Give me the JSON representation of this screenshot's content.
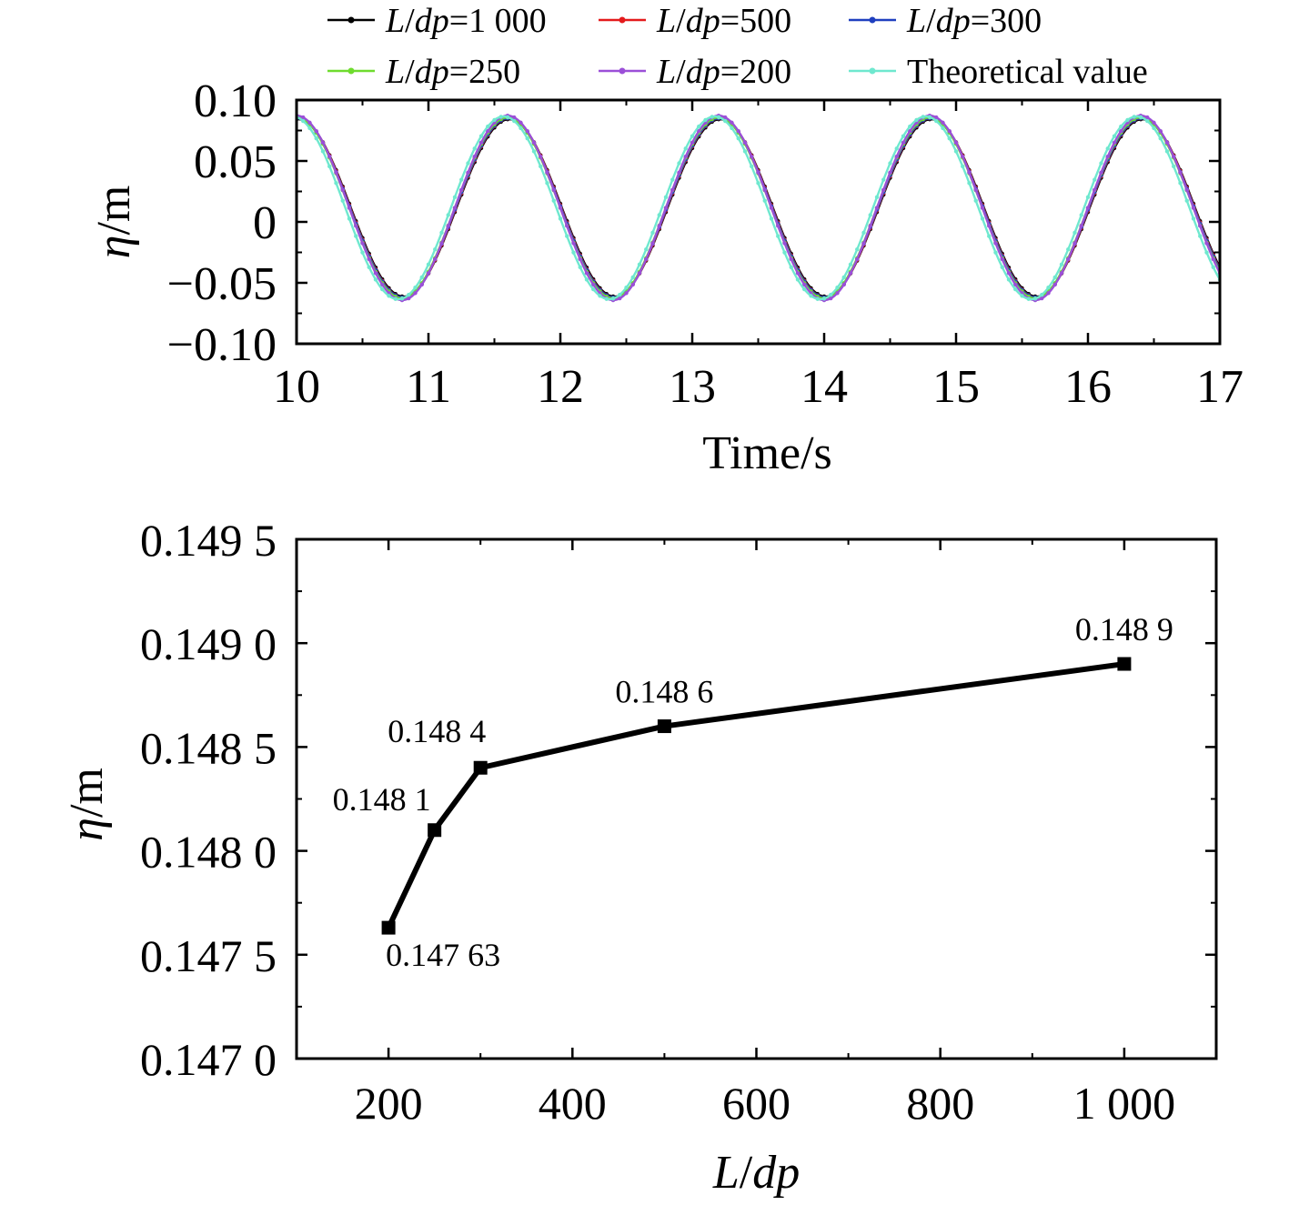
{
  "chart_data": [
    {
      "type": "line",
      "xlabel": "Time/s",
      "ylabel": "η/m",
      "xlim": [
        10,
        17
      ],
      "ylim": [
        -0.1,
        0.1
      ],
      "x_ticks": [
        "10",
        "11",
        "12",
        "13",
        "14",
        "15",
        "16",
        "17"
      ],
      "y_ticks": [
        "0.10",
        "0.05",
        "0",
        "−0.05",
        "−0.10"
      ],
      "legend_position": "top",
      "wave": {
        "period": 1.6,
        "crest": 0.085,
        "trough": -0.062,
        "first_crest_time": 10.0
      },
      "series": [
        {
          "label_var": "L/dp",
          "label_val": "=1 000",
          "color": "#000000",
          "marker": "square",
          "phase_shift": 0.012,
          "amp_scale": 0.99
        },
        {
          "label_var": "L/dp",
          "label_val": "=500",
          "color": "#e41a1c",
          "marker": "circle",
          "phase_shift": 0.008,
          "amp_scale": 1.0
        },
        {
          "label_var": "L/dp",
          "label_val": "=300",
          "color": "#1f3fbf",
          "marker": "triangle",
          "phase_shift": 0.005,
          "amp_scale": 1.0
        },
        {
          "label_var": "L/dp",
          "label_val": "=250",
          "color": "#6fdc2e",
          "marker": "triangle-down",
          "phase_shift": 0.0,
          "amp_scale": 1.01
        },
        {
          "label_var": "L/dp",
          "label_val": "=200",
          "color": "#9b4fd8",
          "marker": "diamond",
          "phase_shift": 0.0,
          "amp_scale": 1.03
        },
        {
          "label_var": "",
          "label_val": "Theoretical value",
          "color": "#6fe8cf",
          "marker": "star",
          "phase_shift": -0.03,
          "amp_scale": 1.02
        }
      ]
    },
    {
      "type": "line",
      "xlabel": "L/dp",
      "ylabel": "η/m",
      "xlim": [
        100,
        1100
      ],
      "ylim": [
        0.147,
        0.1495
      ],
      "x_ticks": [
        {
          "value": 200,
          "label": "200"
        },
        {
          "value": 400,
          "label": "400"
        },
        {
          "value": 600,
          "label": "600"
        },
        {
          "value": 800,
          "label": "800"
        },
        {
          "value": 1000,
          "label": "1 000"
        }
      ],
      "y_ticks": [
        {
          "value": 0.1495,
          "label": "0.149 5"
        },
        {
          "value": 0.149,
          "label": "0.149 0"
        },
        {
          "value": 0.1485,
          "label": "0.148 5"
        },
        {
          "value": 0.148,
          "label": "0.148 0"
        },
        {
          "value": 0.1475,
          "label": "0.147 5"
        },
        {
          "value": 0.147,
          "label": "0.147 0"
        }
      ],
      "points": [
        {
          "x": 200,
          "y": 0.14763,
          "label": "0.147 63"
        },
        {
          "x": 250,
          "y": 0.1481,
          "label": "0.148 1"
        },
        {
          "x": 300,
          "y": 0.1484,
          "label": "0.148 4"
        },
        {
          "x": 500,
          "y": 0.1486,
          "label": "0.148 6"
        },
        {
          "x": 1000,
          "y": 0.1489,
          "label": "0.148 9"
        }
      ],
      "color": "#000000"
    }
  ]
}
